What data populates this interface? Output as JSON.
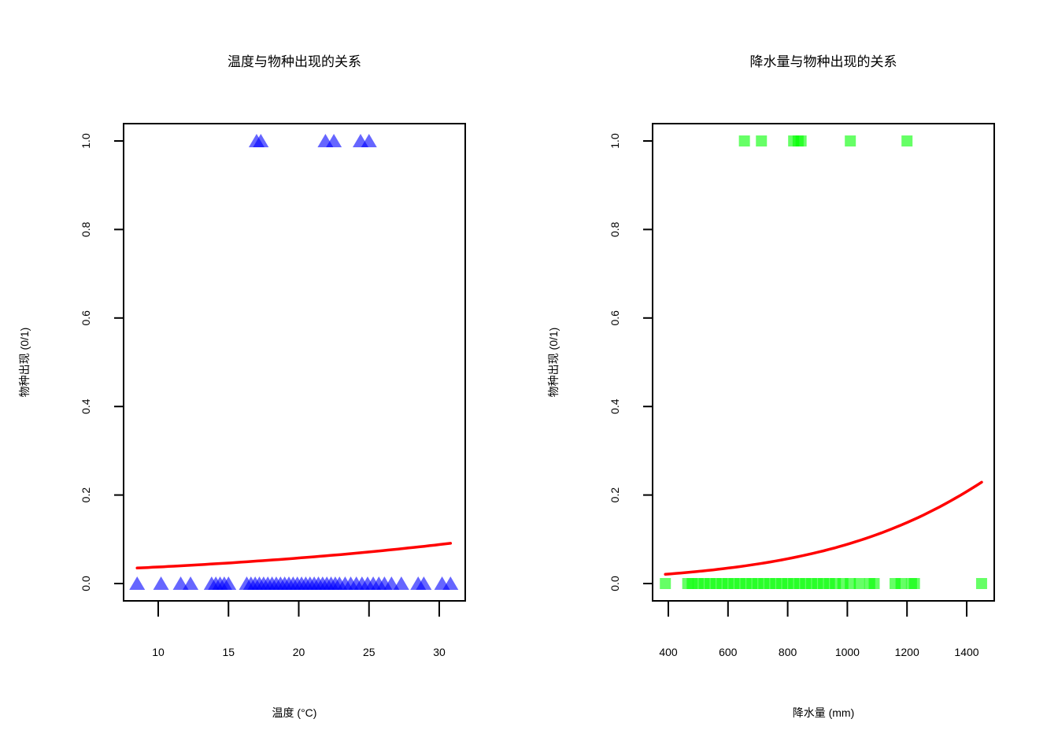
{
  "chart_data": [
    {
      "type": "scatter",
      "title": "温度与物种出现的关系",
      "xlabel": "温度 (°C)",
      "ylabel": "物种出现 (0/1)",
      "xticks": [
        10,
        15,
        20,
        25,
        30
      ],
      "yticks": [
        "0.0",
        "0.2",
        "0.4",
        "0.6",
        "0.8",
        "1.0"
      ],
      "xlim": [
        7.5,
        31.7
      ],
      "ylim": [
        -0.04,
        1.04
      ],
      "marker": "triangle",
      "marker_color": "#0000FF",
      "marker_alpha": 0.6,
      "points_y1": [
        17.0,
        17.3,
        21.9,
        22.5,
        24.4,
        25.0
      ],
      "points_y0": [
        8.5,
        10.2,
        11.6,
        12.3,
        13.8,
        14.1,
        14.4,
        14.7,
        15.0,
        16.3,
        16.6,
        16.9,
        17.2,
        17.5,
        17.8,
        18.1,
        18.4,
        18.7,
        19.0,
        19.3,
        19.6,
        19.9,
        20.2,
        20.5,
        20.8,
        21.1,
        21.4,
        21.7,
        22.0,
        22.3,
        22.6,
        22.9,
        23.3,
        23.7,
        24.1,
        24.5,
        24.9,
        25.3,
        25.7,
        26.1,
        26.6,
        27.3,
        28.5,
        28.9,
        30.2,
        30.8
      ],
      "fit_curve": {
        "color": "#FF0000",
        "x": [
          8.5,
          30.8
        ],
        "y": [
          0.035,
          0.091
        ],
        "type": "logistic"
      }
    },
    {
      "type": "scatter",
      "title": "降水量与物种出现的关系",
      "xlabel": "降水量 (mm)",
      "ylabel": "物种出现 (0/1)",
      "xticks": [
        400,
        600,
        800,
        1000,
        1200,
        1400
      ],
      "yticks": [
        "0.0",
        "0.2",
        "0.4",
        "0.6",
        "0.8",
        "1.0"
      ],
      "xlim": [
        345,
        1490
      ],
      "ylim": [
        -0.04,
        1.04
      ],
      "marker": "square",
      "marker_color": "#00FF00",
      "marker_alpha": 0.6,
      "points_y1": [
        655,
        712,
        820,
        835,
        845,
        1010,
        1200
      ],
      "points_y0": [
        390,
        465,
        480,
        500,
        520,
        540,
        560,
        580,
        600,
        620,
        640,
        660,
        680,
        700,
        720,
        740,
        760,
        780,
        800,
        820,
        840,
        860,
        880,
        900,
        920,
        940,
        960,
        985,
        1010,
        1040,
        1075,
        1090,
        1160,
        1180,
        1215,
        1225,
        1450
      ],
      "fit_curve": {
        "color": "#FF0000",
        "x": [
          390,
          1450
        ],
        "y": [
          0.021,
          0.229
        ],
        "type": "logistic"
      }
    }
  ]
}
